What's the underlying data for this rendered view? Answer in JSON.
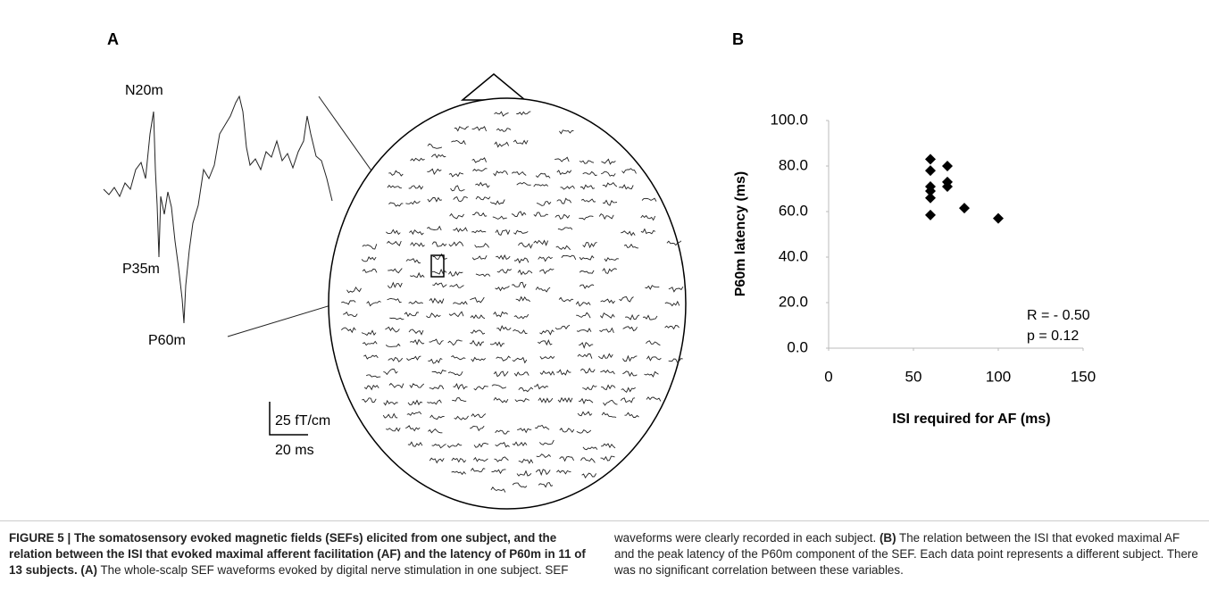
{
  "panel_a": {
    "label": "A",
    "peaks": [
      "N20m",
      "P35m",
      "P60m"
    ],
    "scale_y": "25 fT/cm",
    "scale_x": "20 ms"
  },
  "chart_data": {
    "type": "scatter",
    "label": "B",
    "x_label": "ISI required for AF (ms)",
    "y_label": "P60m latency (ms)",
    "x": [
      60,
      60,
      60,
      60,
      60,
      60,
      70,
      70,
      70,
      80,
      100
    ],
    "values": [
      83,
      78,
      71,
      69,
      66,
      58.5,
      80,
      73,
      71,
      61.5,
      57
    ],
    "color": "#000000",
    "xlim": [
      0,
      150
    ],
    "xticks": [
      0,
      50,
      100,
      150
    ],
    "ylim": [
      0,
      100
    ],
    "yticks": [
      {
        "value": 0,
        "label": "0.0"
      },
      {
        "value": 20,
        "label": "20.0"
      },
      {
        "value": 40,
        "label": "40.0"
      },
      {
        "value": 60,
        "label": "60.0"
      },
      {
        "value": 80,
        "label": "80.0"
      },
      {
        "value": 100,
        "label": "100.0"
      }
    ],
    "annotations": [
      "R = - 0.50",
      "p = 0.12"
    ]
  },
  "caption": {
    "title": "FIGURE 5 | The somatosensory evoked magnetic fields (SEFs) elicited from one subject, and the relation between the ISI that evoked maximal afferent facilitation (AF) and the latency of P60m in 11 of 13 subjects.",
    "a_label": "(A)",
    "a_text": "The whole-scalp SEF waveforms evoked by digital nerve stimulation in one subject. SEF waveforms were clearly recorded in each subject.",
    "b_label": "(B)",
    "b_text": "The relation between the ISI that evoked maximal AF and the peak latency of the P60m component of the SEF. Each data point represents a different subject. There was no significant correlation between these variables."
  }
}
